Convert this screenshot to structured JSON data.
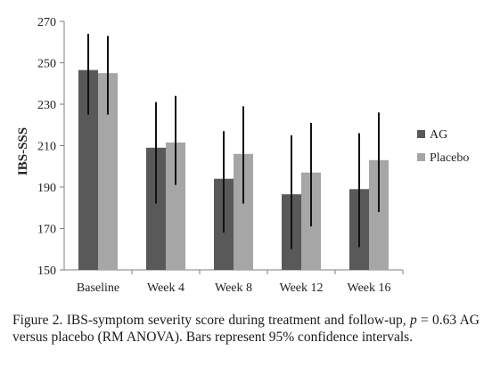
{
  "chart_data": {
    "type": "bar",
    "ylabel": "IBS-SSS",
    "xlabel": "",
    "ylim": [
      150,
      270
    ],
    "yticks": [
      150,
      170,
      190,
      210,
      230,
      250,
      270
    ],
    "grid": false,
    "legend_position": "right",
    "categories": [
      "Baseline",
      "Week 4",
      "Week 8",
      "Week 12",
      "Week 16"
    ],
    "series": [
      {
        "name": "AG",
        "color": "#595959",
        "values": [
          246.5,
          209,
          194,
          186.5,
          189
        ],
        "ci_low": [
          225,
          182,
          168,
          160,
          161
        ],
        "ci_high": [
          264,
          231,
          217,
          215,
          216
        ]
      },
      {
        "name": "Placebo",
        "color": "#a6a6a6",
        "values": [
          245,
          211.5,
          206,
          197,
          203
        ],
        "ci_low": [
          225,
          191,
          182,
          171,
          178
        ],
        "ci_high": [
          263,
          234,
          229,
          221,
          226
        ]
      }
    ]
  },
  "caption": {
    "part1": "Figure 2. IBS-symptom severity score during treatment and follow-up, ",
    "p_symbol": "p",
    "part2": " = 0.63 AG versus placebo (RM ANOVA). Bars represent 95% confidence intervals."
  }
}
